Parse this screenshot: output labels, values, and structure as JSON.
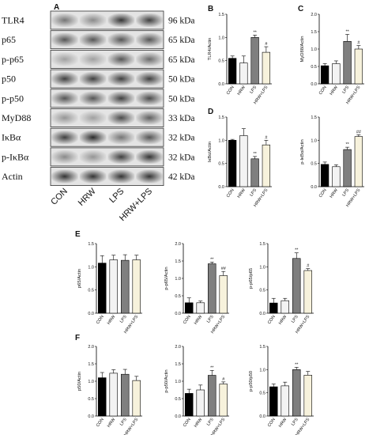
{
  "panel_letters": {
    "A": "A",
    "B": "B",
    "C": "C",
    "D": "D",
    "E": "E",
    "F": "F"
  },
  "blot": {
    "proteins": [
      {
        "name": "TLR4",
        "kda": "96 kDa",
        "lanes": [
          0.55,
          0.45,
          0.85,
          0.8
        ]
      },
      {
        "name": "p65",
        "kda": "65 kDa",
        "lanes": [
          0.7,
          0.7,
          0.7,
          0.7
        ]
      },
      {
        "name": "p-p65",
        "kda": "65 kDa",
        "lanes": [
          0.35,
          0.35,
          0.7,
          0.6
        ]
      },
      {
        "name": "p50",
        "kda": "50 kDa",
        "lanes": [
          0.8,
          0.8,
          0.8,
          0.8
        ]
      },
      {
        "name": "p-p50",
        "kda": "50 kDa",
        "lanes": [
          0.7,
          0.7,
          0.8,
          0.75
        ]
      },
      {
        "name": "MyD88",
        "kda": "33 kDa",
        "lanes": [
          0.4,
          0.35,
          0.75,
          0.65
        ]
      },
      {
        "name": "IκBα",
        "kda": "32 kDa",
        "lanes": [
          0.8,
          0.9,
          0.55,
          0.7
        ]
      },
      {
        "name": "p-IκBα",
        "kda": "32 kDa",
        "lanes": [
          0.45,
          0.4,
          0.8,
          0.85
        ]
      },
      {
        "name": "Actin",
        "kda": "42 kDa",
        "lanes": [
          0.85,
          0.85,
          0.85,
          0.85
        ]
      }
    ],
    "lanes": [
      "CON",
      "HRW",
      "LPS",
      "HRW+LPS"
    ]
  },
  "chart_data": [
    {
      "id": "B",
      "type": "bar",
      "categories": [
        "CON",
        "HRW",
        "LPS",
        "HRW+LPS"
      ],
      "values": [
        0.55,
        0.45,
        1.0,
        0.68
      ],
      "errors": [
        0.05,
        0.15,
        0.05,
        0.12
      ],
      "ylabel": "TLR4/Actin",
      "ylim": [
        0,
        1.5
      ],
      "yticks": [
        "0.0",
        "0.5",
        "1.0",
        "1.5"
      ],
      "sig": [
        "",
        "",
        "**",
        "#"
      ]
    },
    {
      "id": "C",
      "type": "bar",
      "categories": [
        "CON",
        "HRW",
        "LPS",
        "HRW+LPS"
      ],
      "values": [
        0.52,
        0.58,
        1.22,
        1.0
      ],
      "errors": [
        0.06,
        0.08,
        0.2,
        0.1
      ],
      "ylabel": "MyD88/Actin",
      "ylim": [
        0,
        2.0
      ],
      "yticks": [
        "0.0",
        "0.5",
        "1.0",
        "1.5",
        "2.0"
      ],
      "sig": [
        "",
        "",
        "**",
        "#"
      ]
    },
    {
      "id": "D",
      "type": "bar",
      "categories": [
        "CON",
        "HRW",
        "LPS",
        "HRW+LPS"
      ],
      "values": [
        1.0,
        1.1,
        0.6,
        0.9
      ],
      "errors": [
        0.02,
        0.15,
        0.05,
        0.1
      ],
      "ylabel": "IκBα/Actin",
      "ylim": [
        0,
        1.5
      ],
      "yticks": [
        "0.0",
        "0.5",
        "1.0",
        "1.5"
      ],
      "sig": [
        "",
        "",
        "**",
        "#"
      ]
    },
    {
      "id": "D2",
      "type": "bar",
      "categories": [
        "CON",
        "HRW",
        "LPS",
        "HRW+LPS"
      ],
      "values": [
        0.48,
        0.43,
        0.8,
        1.08
      ],
      "errors": [
        0.05,
        0.04,
        0.05,
        0.04
      ],
      "ylabel": "p-IκBα/Actin",
      "ylim": [
        0,
        1.5
      ],
      "yticks": [
        "0.0",
        "0.5",
        "1.0",
        "1.5"
      ],
      "sig": [
        "",
        "",
        "**",
        "##"
      ]
    },
    {
      "id": "E1",
      "type": "bar",
      "categories": [
        "CON",
        "HRW",
        "LPS",
        "HRW+LPS"
      ],
      "values": [
        1.08,
        1.15,
        1.14,
        1.15
      ],
      "errors": [
        0.16,
        0.1,
        0.12,
        0.1
      ],
      "ylabel": "p65/Actin",
      "ylim": [
        0,
        1.5
      ],
      "yticks": [
        "0.0",
        "0.5",
        "1.0",
        "1.5"
      ],
      "sig": [
        "",
        "",
        "",
        ""
      ]
    },
    {
      "id": "E2",
      "type": "bar",
      "categories": [
        "CON",
        "HRW",
        "LPS",
        "HRW+LPS"
      ],
      "values": [
        0.3,
        0.3,
        1.42,
        1.08
      ],
      "errors": [
        0.14,
        0.05,
        0.05,
        0.12
      ],
      "ylabel": "p-p65/Actin",
      "ylim": [
        0,
        2.0
      ],
      "yticks": [
        "0.0",
        "0.5",
        "1.0",
        "1.5",
        "2.0"
      ],
      "sig": [
        "",
        "",
        "**",
        "##"
      ]
    },
    {
      "id": "E3",
      "type": "bar",
      "categories": [
        "CON",
        "HRW",
        "LPS",
        "HRW+LPS"
      ],
      "values": [
        0.22,
        0.27,
        1.18,
        0.92
      ],
      "errors": [
        0.1,
        0.05,
        0.12,
        0.04
      ],
      "ylabel": "p-p65/p65",
      "ylim": [
        0,
        1.5
      ],
      "yticks": [
        "0.0",
        "0.5",
        "1.0",
        "1.5"
      ],
      "sig": [
        "",
        "",
        "**",
        "#"
      ]
    },
    {
      "id": "F1",
      "type": "bar",
      "categories": [
        "CON",
        "HRW",
        "LPS",
        "HRW+LPS"
      ],
      "values": [
        1.1,
        1.23,
        1.2,
        1.02
      ],
      "errors": [
        0.15,
        0.1,
        0.14,
        0.12
      ],
      "ylabel": "p50/Actin",
      "ylim": [
        0,
        2.0
      ],
      "yticks": [
        "0.0",
        "0.5",
        "1.0",
        "1.5",
        "2.0"
      ],
      "sig": [
        "",
        "",
        "",
        ""
      ]
    },
    {
      "id": "F2",
      "type": "bar",
      "categories": [
        "CON",
        "HRW",
        "LPS",
        "HRW+LPS"
      ],
      "values": [
        0.65,
        0.75,
        1.17,
        0.92
      ],
      "errors": [
        0.12,
        0.14,
        0.14,
        0.06
      ],
      "ylabel": "p-p50/Actin",
      "ylim": [
        0,
        2.0
      ],
      "yticks": [
        "0.0",
        "0.5",
        "1.0",
        "1.5",
        "2.0"
      ],
      "sig": [
        "",
        "",
        "**",
        "#"
      ]
    },
    {
      "id": "F3",
      "type": "bar",
      "categories": [
        "CON",
        "HRW",
        "LPS",
        "HRW+LPS"
      ],
      "values": [
        0.63,
        0.65,
        1.0,
        0.88
      ],
      "errors": [
        0.06,
        0.08,
        0.05,
        0.08
      ],
      "ylabel": "p-p50/p50",
      "ylim": [
        0,
        1.5
      ],
      "yticks": [
        "0.0",
        "0.5",
        "1.0",
        "1.5"
      ],
      "sig": [
        "",
        "",
        "**",
        ""
      ]
    }
  ]
}
